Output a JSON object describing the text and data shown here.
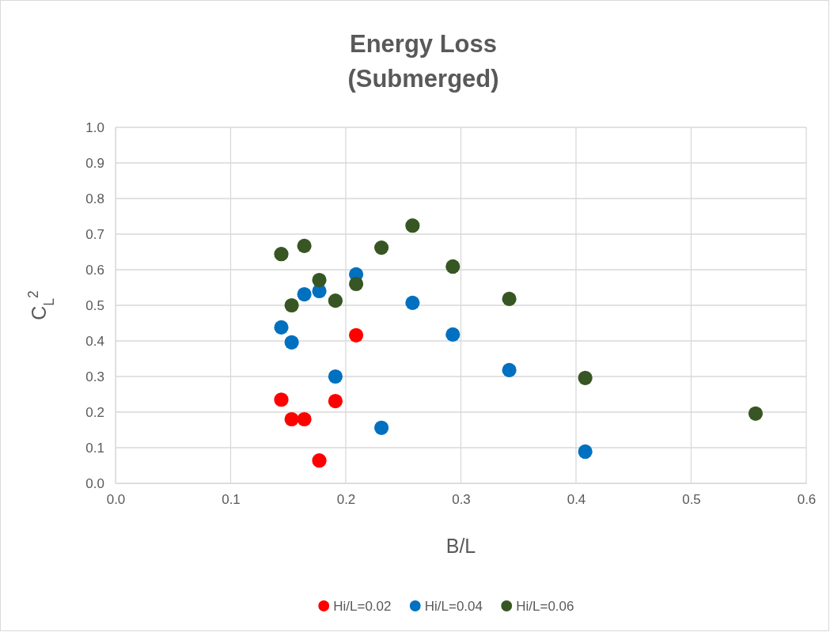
{
  "chart_data": {
    "type": "scatter",
    "title": "Energy Loss\n(Submerged)",
    "xlabel": "B/L",
    "ylabel": "C$_{L}$$^{2}$",
    "xlim": [
      0,
      0.6
    ],
    "xticks": [
      {
        "value": 0,
        "label": "0.0"
      },
      0.1,
      0.2,
      0.3,
      0.4,
      0.5,
      0.6
    ],
    "ylim": [
      0,
      1
    ],
    "yticks": [
      {
        "value": 0,
        "label": "0.0"
      },
      0.1,
      0.2,
      0.3,
      0.4,
      0.5,
      0.6,
      0.7,
      0.8,
      0.9,
      {
        "value": 1,
        "label": "1.0"
      }
    ],
    "grid": true,
    "legend": "bottom",
    "marker": "circle",
    "series": [
      {
        "name": "Hi/L=0.02",
        "color": "#ff0000",
        "x": [
          0.144,
          0.153,
          0.164,
          0.177,
          0.191,
          0.209
        ],
        "values": [
          0.235,
          0.18,
          0.18,
          0.064,
          0.231,
          0.416
        ]
      },
      {
        "name": "Hi/L=0.04",
        "color": "#0070c0",
        "x": [
          0.144,
          0.153,
          0.164,
          0.177,
          0.191,
          0.209,
          0.231,
          0.258,
          0.293,
          0.342,
          0.408
        ],
        "values": [
          0.438,
          0.396,
          0.531,
          0.54,
          0.3,
          0.587,
          0.156,
          0.507,
          0.418,
          0.318,
          0.089
        ]
      },
      {
        "name": "Hi/L=0.06",
        "color": "#375623",
        "x": [
          0.144,
          0.153,
          0.164,
          0.177,
          0.191,
          0.209,
          0.231,
          0.258,
          0.293,
          0.342,
          0.408,
          0.556
        ],
        "values": [
          0.644,
          0.5,
          0.667,
          0.571,
          0.513,
          0.56,
          0.662,
          0.724,
          0.609,
          0.518,
          0.296,
          0.196
        ]
      }
    ]
  }
}
